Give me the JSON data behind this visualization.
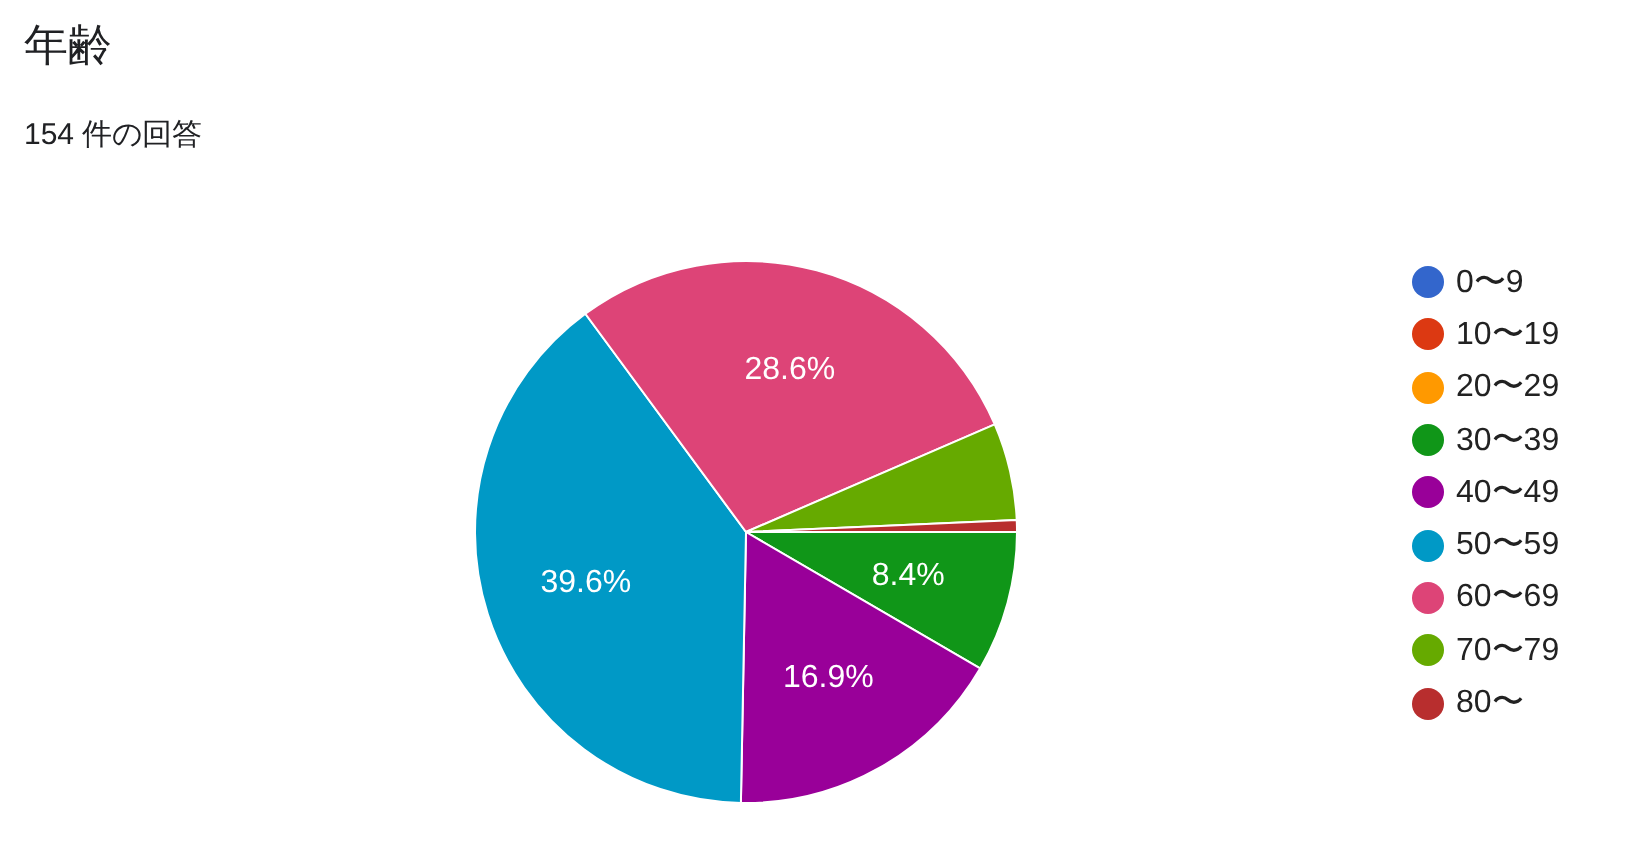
{
  "chart_data": {
    "type": "pie",
    "title": "年齢",
    "subtitle": "154 件の回答",
    "categories": [
      "0〜9",
      "10〜19",
      "20〜29",
      "30〜39",
      "40〜49",
      "50〜59",
      "60〜69",
      "70〜79",
      "80〜"
    ],
    "values": [
      0,
      0,
      0,
      8.4,
      16.9,
      39.6,
      28.6,
      5.8,
      0.7
    ],
    "colors": [
      "#3366cc",
      "#dc3912",
      "#ff9900",
      "#109618",
      "#990099",
      "#0099c6",
      "#dd4477",
      "#66aa00",
      "#b82e2e"
    ],
    "value_labels": [
      null,
      null,
      null,
      "8.4%",
      "16.9%",
      "39.6%",
      "28.6%",
      null,
      null
    ],
    "legend": "right"
  }
}
